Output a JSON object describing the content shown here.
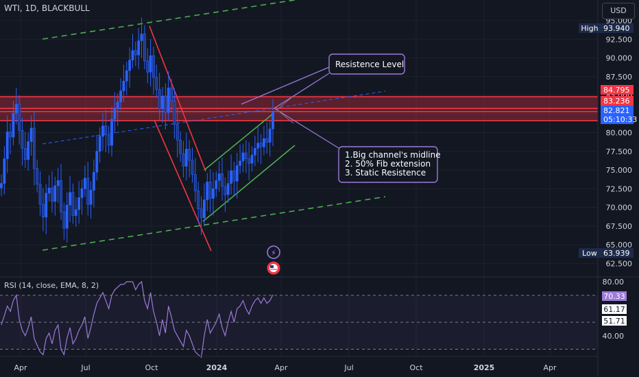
{
  "header": {
    "symbol": "WTI, 1D, BLACKBULL",
    "currency_button": "USD"
  },
  "chart_data": {
    "type": "candlestick",
    "symbol": "WTI",
    "interval": "1D",
    "broker": "BLACKBULL",
    "price_axis": {
      "ticks": [
        95.0,
        92.5,
        90.0,
        87.5,
        85.0,
        82.5,
        80.0,
        77.5,
        75.0,
        72.5,
        70.0,
        67.5,
        65.0,
        62.5
      ],
      "tick_labels": [
        "95.000",
        "92.500",
        "90.000",
        "87.500",
        "85.000",
        "82.500",
        "80.000",
        "77.500",
        "75.000",
        "72.500",
        "70.000",
        "67.500",
        "65.000",
        "62.500"
      ]
    },
    "time_axis": {
      "labels": [
        "Apr",
        "Jul",
        "Oct",
        "2024",
        "Apr",
        "Jul",
        "Oct",
        "2025",
        "Apr"
      ],
      "bold": [
        false,
        false,
        false,
        true,
        false,
        false,
        false,
        true,
        false
      ]
    },
    "price_tags": [
      {
        "label": "High",
        "value": "93.940",
        "bg": "#1e2a4a",
        "fg": "#ffffff"
      },
      {
        "label": "",
        "value": "84.795",
        "bg": "#f23645",
        "fg": "#ffffff"
      },
      {
        "label": "",
        "value": "83.236",
        "bg": "#f23645",
        "fg": "#ffffff"
      },
      {
        "label": "",
        "value": "82.821",
        "bg": "#2962ff",
        "fg": "#ffffff"
      },
      {
        "label": "",
        "value": "05:10:33",
        "bg": "#2962ff",
        "fg": "#ffffff"
      },
      {
        "label": "Low",
        "value": "63.939",
        "bg": "#1e2a4a",
        "fg": "#ffffff"
      }
    ],
    "resistance_zone": {
      "top": 84.795,
      "bottom": 81.6,
      "color": "#f23645"
    },
    "annotations": [
      {
        "lines": [
          "Resistence Level"
        ]
      },
      {
        "lines": [
          "1.Big channel's midline",
          "2. 50% Fib extension",
          "3. Static Resistence"
        ]
      }
    ],
    "rsi": {
      "title": "RSI (14, close, EMA, 8, 2)",
      "ticks": [
        80,
        40
      ],
      "tick_labels": [
        "80.00",
        "40.00"
      ],
      "bands": [
        70,
        50,
        30
      ],
      "values": [
        {
          "label": "70.33",
          "bg": "#9c7bd9",
          "fg": "#ffffff"
        },
        {
          "label": "61.17",
          "bg": "#ffffff",
          "fg": "#131722"
        },
        {
          "label": "51.71",
          "bg": "#ffffff",
          "fg": "#131722"
        }
      ]
    },
    "colors": {
      "up": "#2962ff",
      "down": "#1e3a8a",
      "channel": "#26a69a",
      "trend_red": "#f23645",
      "trend_green": "#4caf50",
      "midline": "#2962ff",
      "annotation": "#9c7bd9"
    },
    "series_close": [
      73.2,
      76.5,
      80.1,
      79.4,
      82.6,
      83.8,
      80.3,
      77.9,
      76.4,
      78.8,
      80.6,
      75.2,
      73.1,
      70.4,
      68.7,
      71.9,
      72.6,
      70.8,
      72.9,
      73.6,
      69.4,
      67.2,
      70.3,
      72.0,
      68.9,
      69.7,
      71.3,
      72.5,
      73.9,
      70.4,
      72.3,
      74.7,
      77.5,
      79.5,
      80.9,
      79.7,
      78.3,
      81.8,
      83.2,
      84.1,
      85.6,
      86.9,
      88.3,
      89.7,
      91.0,
      90.4,
      92.3,
      93.2,
      89.6,
      88.1,
      90.3,
      87.4,
      85.8,
      83.2,
      84.9,
      82.7,
      86.0,
      84.2,
      81.1,
      79.0,
      77.2,
      75.5,
      77.8,
      76.3,
      74.4,
      72.2,
      69.8,
      68.6,
      71.0,
      73.4,
      71.2,
      72.5,
      73.6,
      74.5,
      72.8,
      71.7,
      73.2,
      74.9,
      73.5,
      75.6,
      76.2,
      77.3,
      76.5,
      75.9,
      77.0,
      77.9,
      78.6,
      78.1,
      79.2,
      78.7,
      80.5,
      82.8
    ],
    "rsi_values": [
      48,
      55,
      62,
      58,
      66,
      70,
      52,
      44,
      40,
      46,
      54,
      38,
      33,
      28,
      26,
      38,
      42,
      34,
      44,
      48,
      30,
      26,
      38,
      46,
      34,
      38,
      44,
      48,
      54,
      38,
      46,
      56,
      64,
      68,
      72,
      66,
      60,
      70,
      74,
      76,
      78,
      78,
      80,
      80,
      80,
      74,
      78,
      80,
      66,
      60,
      72,
      58,
      50,
      40,
      52,
      42,
      62,
      54,
      44,
      40,
      36,
      32,
      44,
      40,
      34,
      28,
      26,
      24,
      40,
      52,
      42,
      46,
      50,
      56,
      46,
      40,
      50,
      58,
      50,
      60,
      62,
      66,
      60,
      56,
      62,
      66,
      68,
      64,
      68,
      64,
      66,
      70.33
    ]
  }
}
